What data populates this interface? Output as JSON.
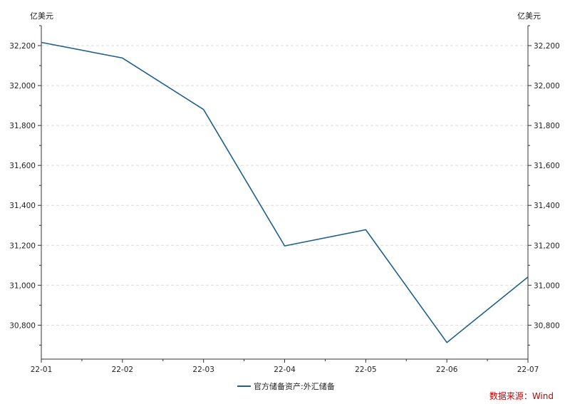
{
  "chart_data": {
    "type": "line",
    "title": "",
    "x": [
      "22-01",
      "22-02",
      "22-03",
      "22-04",
      "22-05",
      "22-06",
      "22-07"
    ],
    "series": [
      {
        "name": "官方储备资产:外汇储备",
        "values": [
          32216,
          32138,
          31880,
          31197,
          31278,
          30713,
          31041
        ],
        "color": "#1f5f8b"
      }
    ],
    "y_unit_left": "亿美元",
    "y_unit_right": "亿美元",
    "ylim": [
      30630,
      32300
    ],
    "y_ticks": [
      30800,
      31000,
      31200,
      31400,
      31600,
      31800,
      32000,
      32200
    ],
    "y_tick_labels": [
      "30,800",
      "31,000",
      "31,200",
      "31,400",
      "31,600",
      "31,800",
      "32,000",
      "32,200"
    ],
    "grid": true,
    "legend_position": "bottom-center",
    "source": "数据来源：Wind",
    "source_color": "#c00000"
  }
}
